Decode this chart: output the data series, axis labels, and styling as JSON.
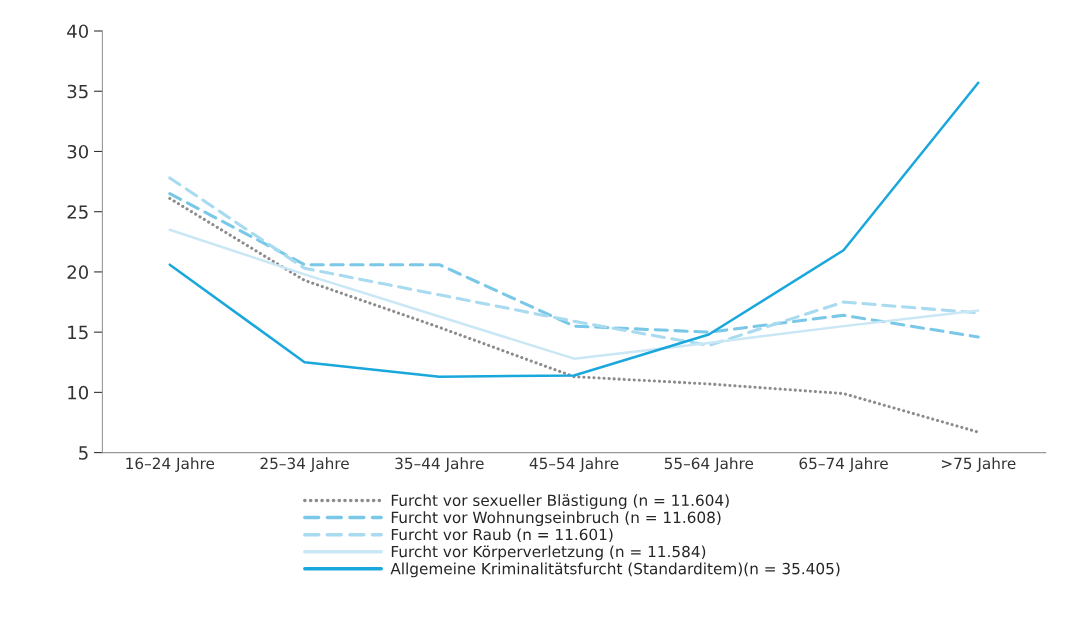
{
  "chart_data": {
    "type": "line",
    "categories": [
      "16–24 Jahre",
      "25–34 Jahre",
      "35–44 Jahre",
      "45–54 Jahre",
      "55–64 Jahre",
      "65–74 Jahre",
      ">75 Jahre"
    ],
    "ylim": [
      5,
      40
    ],
    "yticks": [
      5,
      10,
      15,
      20,
      25,
      30,
      35,
      40
    ],
    "grid": false,
    "legend": "bottom",
    "series": [
      {
        "name": "Furcht vor sexueller Blästigung (n = 11.604)",
        "color": "#8c8c8c",
        "line_style": "dotted",
        "values": [
          26.1,
          19.3,
          15.4,
          11.3,
          10.7,
          9.9,
          6.7
        ]
      },
      {
        "name": "Furcht vor Wohnungseinbruch (n = 11.608)",
        "color": "#7ac8e8",
        "line_style": "dashed",
        "values": [
          26.5,
          20.6,
          20.6,
          15.5,
          15.0,
          16.4,
          14.6
        ]
      },
      {
        "name": "Furcht vor Raub (n = 11.601)",
        "color": "#a8daf0",
        "line_style": "dashed",
        "values": [
          27.8,
          20.3,
          18.1,
          15.9,
          13.9,
          17.5,
          16.6
        ]
      },
      {
        "name": "Furcht vor Körperverletzung (n = 11.584)",
        "color": "#c9e7f5",
        "line_style": "solid",
        "values": [
          23.5,
          19.8,
          16.3,
          12.8,
          14.1,
          15.5,
          16.8
        ]
      },
      {
        "name": "Allgemeine Kriminalitätsfurcht (Standarditem)(n = 35.405)",
        "color": "#1aa7dc",
        "line_style": "solid",
        "values": [
          20.6,
          12.5,
          11.3,
          11.4,
          14.8,
          21.8,
          35.7
        ]
      }
    ]
  }
}
